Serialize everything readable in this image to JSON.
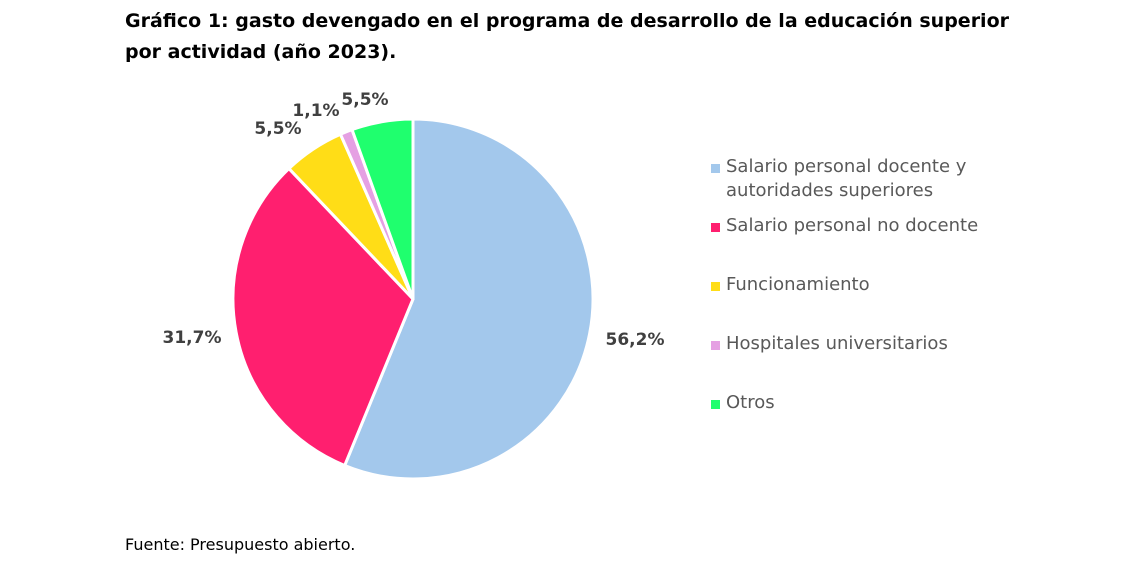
{
  "title": "Gráfico 1: gasto devengado en el programa de desarrollo de la educación superior por actividad (año 2023).",
  "source": "Fuente: Presupuesto abierto.",
  "chart_data": {
    "type": "pie",
    "categories": [
      "Salario personal docente y autoridades superiores",
      "Salario personal no docente",
      "Funcionamiento",
      "Hospitales universitarios",
      "Otros"
    ],
    "values": [
      56.2,
      31.7,
      5.5,
      1.1,
      5.5
    ],
    "data_labels": [
      "56,2%",
      "31,7%",
      "5,5%",
      "1,1%",
      "5,5%"
    ],
    "colors": [
      "#A3C8EC",
      "#FF1F6F",
      "#FFDD17",
      "#E5A0E3",
      "#1FFF6E"
    ],
    "legend_placement": "right",
    "start_angle": "12 o'clock",
    "direction": "clockwise"
  }
}
